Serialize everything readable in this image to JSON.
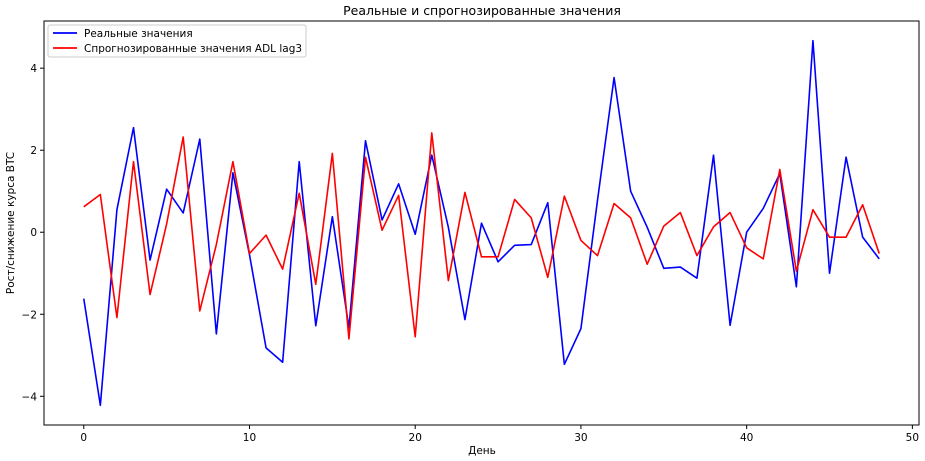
{
  "chart_data": {
    "type": "line",
    "title": "Реальные и спрогнозированные значения",
    "xlabel": "День",
    "ylabel": "Рост/снижение курса BTC",
    "xlim": [
      -2.4,
      50.4
    ],
    "ylim": [
      -4.7,
      5.15
    ],
    "xticks": [
      0,
      10,
      20,
      30,
      40,
      50
    ],
    "yticks": [
      -4,
      -2,
      0,
      2,
      4
    ],
    "grid": false,
    "legend": "top-left",
    "x": [
      0,
      1,
      2,
      3,
      4,
      5,
      6,
      7,
      8,
      9,
      10,
      11,
      12,
      13,
      14,
      15,
      16,
      17,
      18,
      19,
      20,
      21,
      22,
      23,
      24,
      25,
      26,
      27,
      28,
      29,
      30,
      31,
      32,
      33,
      34,
      35,
      36,
      37,
      38,
      39,
      40,
      41,
      42,
      43,
      44,
      45,
      46,
      47,
      48
    ],
    "series": [
      {
        "name": "Реальные значения",
        "color": "#0000ff",
        "values": [
          -1.62,
          -4.22,
          0.55,
          2.55,
          -0.68,
          1.05,
          0.47,
          2.27,
          -2.48,
          1.45,
          -0.55,
          -2.82,
          -3.17,
          1.72,
          -2.28,
          0.38,
          -2.33,
          2.23,
          0.3,
          1.18,
          -0.05,
          1.88,
          0.12,
          -2.13,
          0.22,
          -0.72,
          -0.32,
          -0.3,
          0.72,
          -3.22,
          -2.35,
          0.78,
          3.77,
          1.0,
          0.12,
          -0.88,
          -0.85,
          -1.12,
          1.88,
          -2.27,
          0.0,
          0.58,
          1.43,
          -1.33,
          4.67,
          -1.0,
          1.83,
          -0.12,
          -0.65
        ]
      },
      {
        "name": "Спрогнозированные значения ADL lag3",
        "color": "#ff0000",
        "values": [
          0.62,
          0.92,
          -2.08,
          1.72,
          -1.52,
          0.2,
          2.32,
          -1.92,
          -0.3,
          1.72,
          -0.52,
          -0.07,
          -0.9,
          0.95,
          -1.27,
          1.92,
          -2.6,
          1.83,
          0.05,
          0.9,
          -2.55,
          2.42,
          -1.18,
          0.97,
          -0.6,
          -0.6,
          0.8,
          0.35,
          -1.1,
          0.88,
          -0.2,
          -0.57,
          0.7,
          0.35,
          -0.78,
          0.15,
          0.48,
          -0.57,
          0.13,
          0.48,
          -0.38,
          -0.65,
          1.53,
          -0.95,
          0.55,
          -0.12,
          -0.12,
          0.67,
          -0.52
        ]
      }
    ]
  }
}
